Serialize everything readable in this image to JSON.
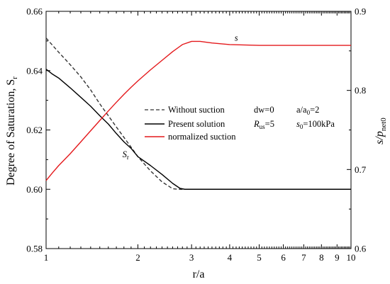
{
  "chart_data": {
    "type": "line",
    "x_scale": "log",
    "xlim": [
      1,
      10
    ],
    "ylim_left": [
      0.58,
      0.66
    ],
    "ylim_right": [
      0.6,
      0.9
    ],
    "grid": false,
    "legend_position": "center-right",
    "x_major_ticks": [
      1,
      2,
      3,
      4,
      5,
      6,
      7,
      8,
      9,
      10
    ],
    "x_tick_labels": [
      "1",
      "2",
      "3",
      "4",
      "5",
      "6",
      "7",
      "8",
      "9",
      "10"
    ],
    "y_left_ticks": [
      0.58,
      0.6,
      0.62,
      0.64,
      0.66
    ],
    "y_left_tick_labels": [
      "0.58",
      "0.60",
      "0.62",
      "0.64",
      "0.66"
    ],
    "y_right_ticks": [
      0.6,
      0.7,
      0.8,
      0.9
    ],
    "y_right_tick_labels": [
      "0.6",
      "0.7",
      "0.8",
      "0.9"
    ],
    "xlabel": "r/a",
    "ylabel_left": {
      "main": "Degree of Saturation,  S",
      "sub": "r"
    },
    "ylabel_right": {
      "main": "s/p",
      "sub": "net0"
    },
    "series": [
      {
        "name": "Without suction",
        "axis": "left",
        "color": "#333333",
        "dash": "dashed",
        "x": [
          1.0,
          1.1,
          1.2,
          1.3,
          1.4,
          1.5,
          1.6,
          1.7,
          1.8,
          1.9,
          2.0,
          2.2,
          2.4,
          2.6,
          2.7,
          3.0,
          4.0,
          5.0,
          7.0,
          10.0
        ],
        "y": [
          0.651,
          0.6462,
          0.642,
          0.6379,
          0.6335,
          0.6288,
          0.6248,
          0.621,
          0.6175,
          0.6142,
          0.611,
          0.6062,
          0.6025,
          0.6002,
          0.6,
          0.6,
          0.6,
          0.6,
          0.6,
          0.6
        ]
      },
      {
        "name": "Present solution",
        "axis": "left",
        "color": "#000000",
        "dash": "solid",
        "x": [
          1.0,
          1.05,
          1.1,
          1.2,
          1.3,
          1.4,
          1.5,
          1.6,
          1.7,
          1.8,
          1.9,
          2.0,
          2.2,
          2.4,
          2.6,
          2.75,
          2.85,
          3.0,
          4.0,
          5.0,
          7.0,
          10.0
        ],
        "y": [
          0.6405,
          0.6388,
          0.6375,
          0.6342,
          0.631,
          0.628,
          0.6248,
          0.622,
          0.6188,
          0.616,
          0.6138,
          0.611,
          0.608,
          0.605,
          0.602,
          0.6003,
          0.6,
          0.6,
          0.6,
          0.6,
          0.6,
          0.6
        ]
      },
      {
        "name": "normalized suction",
        "axis": "right",
        "color": "#e4191c",
        "dash": "solid",
        "x": [
          1.0,
          1.05,
          1.1,
          1.2,
          1.3,
          1.4,
          1.5,
          1.6,
          1.7,
          1.8,
          1.9,
          2.0,
          2.2,
          2.4,
          2.6,
          2.8,
          3.0,
          3.2,
          3.5,
          4.0,
          5.0,
          7.0,
          10.0
        ],
        "y": [
          0.686,
          0.696,
          0.705,
          0.72,
          0.735,
          0.749,
          0.762,
          0.774,
          0.785,
          0.795,
          0.804,
          0.812,
          0.826,
          0.838,
          0.849,
          0.858,
          0.862,
          0.862,
          0.86,
          0.858,
          0.857,
          0.857,
          0.857
        ]
      }
    ],
    "annotations": {
      "params": [
        {
          "id": "dw",
          "text": "dw=0"
        },
        {
          "id": "ratio",
          "main": "a/a",
          "sub": "0",
          "tail": "=2"
        },
        {
          "id": "rus",
          "main": "R",
          "sub": "us",
          "tail": "=5"
        },
        {
          "id": "s0",
          "main": "s",
          "sub": "0",
          "tail": "=100kPa"
        }
      ],
      "curve_labels": [
        {
          "id": "s-label",
          "main": "s",
          "sub": "",
          "x": 4.15,
          "y": 0.863,
          "axis": "right"
        },
        {
          "id": "sr-label",
          "main": "S",
          "sub": "r",
          "x": 1.78,
          "y": 0.6108,
          "axis": "left"
        }
      ]
    }
  }
}
